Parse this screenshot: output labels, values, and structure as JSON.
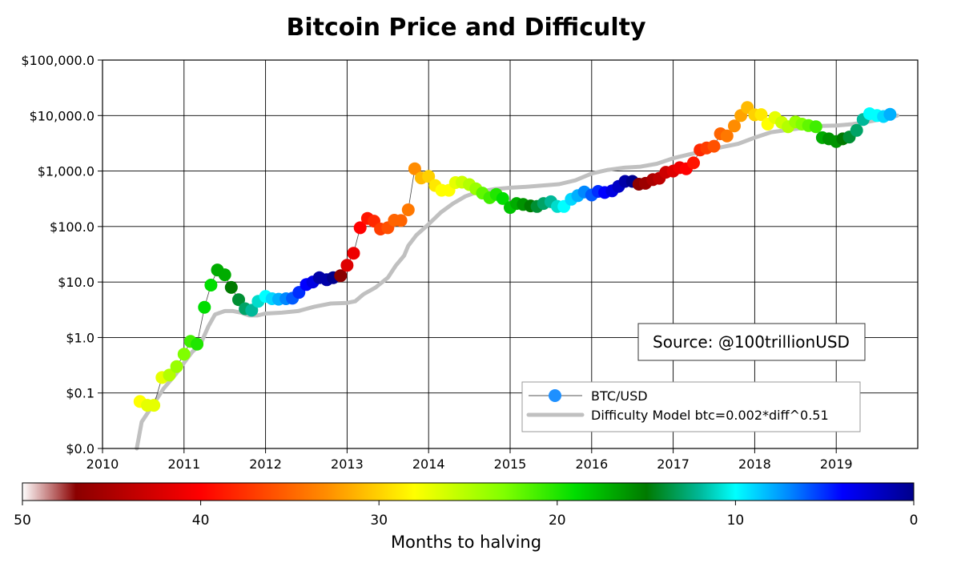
{
  "chart_data": {
    "type": "scatter",
    "title": "Bitcoin Price and Difficulty",
    "yscale": "log",
    "ylim": [
      0.01,
      100000
    ],
    "xlim": [
      2010.0,
      2020.0
    ],
    "y_ticks": [
      {
        "v": 100000,
        "label": "$100,000.0"
      },
      {
        "v": 10000,
        "label": "$10,000.0"
      },
      {
        "v": 1000,
        "label": "$1,000.0"
      },
      {
        "v": 100,
        "label": "$100.0"
      },
      {
        "v": 10,
        "label": "$10.0"
      },
      {
        "v": 1,
        "label": "$1.0"
      },
      {
        "v": 0.1,
        "label": "$0.1"
      },
      {
        "v": 0.01,
        "label": "$0.0"
      }
    ],
    "x_ticks": [
      {
        "v": 2010,
        "label": "2010"
      },
      {
        "v": 2011,
        "label": "2011"
      },
      {
        "v": 2012,
        "label": "2012"
      },
      {
        "v": 2013,
        "label": "2013"
      },
      {
        "v": 2014,
        "label": "2014"
      },
      {
        "v": 2015,
        "label": "2015"
      },
      {
        "v": 2016,
        "label": "2016"
      },
      {
        "v": 2017,
        "label": "2017"
      },
      {
        "v": 2018,
        "label": "2018"
      },
      {
        "v": 2019,
        "label": "2019"
      }
    ],
    "grid": true,
    "legend": {
      "placement": "lower-right",
      "entries": [
        {
          "label": "BTC/USD",
          "color": "#1e90ff"
        },
        {
          "label": "Difficulty Model btc=0.002*diff^0.51",
          "color": "#c0c0c0"
        }
      ]
    },
    "annotation": "Source: @100trillionUSD",
    "colorbar": {
      "label": "Months to halving",
      "range": [
        50,
        0
      ],
      "ticks": [
        {
          "v": 50,
          "label": "50"
        },
        {
          "v": 40,
          "label": "40"
        },
        {
          "v": 30,
          "label": "30"
        },
        {
          "v": 20,
          "label": "20"
        },
        {
          "v": 10,
          "label": "10"
        },
        {
          "v": 0,
          "label": "0"
        }
      ],
      "colormap": [
        {
          "m": 50,
          "color": "#ffffff"
        },
        {
          "m": 47,
          "color": "#8b0000"
        },
        {
          "m": 40,
          "color": "#ff0000"
        },
        {
          "m": 33,
          "color": "#ff8c00"
        },
        {
          "m": 28,
          "color": "#ffff00"
        },
        {
          "m": 23,
          "color": "#80ff00"
        },
        {
          "m": 19,
          "color": "#00dd00"
        },
        {
          "m": 15,
          "color": "#007a00"
        },
        {
          "m": 12,
          "color": "#00b899"
        },
        {
          "m": 10,
          "color": "#00ffff"
        },
        {
          "m": 7,
          "color": "#0088ff"
        },
        {
          "m": 4,
          "color": "#0000ff"
        },
        {
          "m": 0,
          "color": "#00008b"
        }
      ]
    },
    "series": [
      {
        "name": "Difficulty Model btc=0.002*diff^0.51",
        "color": "#c0c0c0",
        "points": [
          [
            2010.42,
            0.01
          ],
          [
            2010.48,
            0.03
          ],
          [
            2010.58,
            0.05
          ],
          [
            2010.75,
            0.12
          ],
          [
            2010.9,
            0.22
          ],
          [
            2011.0,
            0.35
          ],
          [
            2011.1,
            0.55
          ],
          [
            2011.2,
            0.75
          ],
          [
            2011.3,
            1.6
          ],
          [
            2011.38,
            2.6
          ],
          [
            2011.5,
            3.0
          ],
          [
            2011.6,
            3.0
          ],
          [
            2011.7,
            2.8
          ],
          [
            2011.8,
            2.5
          ],
          [
            2011.9,
            2.5
          ],
          [
            2012.0,
            2.7
          ],
          [
            2012.2,
            2.8
          ],
          [
            2012.4,
            3.0
          ],
          [
            2012.6,
            3.6
          ],
          [
            2012.8,
            4.1
          ],
          [
            2013.0,
            4.2
          ],
          [
            2013.1,
            4.5
          ],
          [
            2013.2,
            6.0
          ],
          [
            2013.35,
            8.0
          ],
          [
            2013.5,
            12
          ],
          [
            2013.6,
            20
          ],
          [
            2013.7,
            30
          ],
          [
            2013.75,
            45
          ],
          [
            2013.85,
            70
          ],
          [
            2014.0,
            110
          ],
          [
            2014.15,
            180
          ],
          [
            2014.3,
            260
          ],
          [
            2014.45,
            350
          ],
          [
            2014.6,
            420
          ],
          [
            2014.8,
            470
          ],
          [
            2015.0,
            500
          ],
          [
            2015.2,
            520
          ],
          [
            2015.4,
            550
          ],
          [
            2015.6,
            580
          ],
          [
            2015.8,
            680
          ],
          [
            2016.0,
            900
          ],
          [
            2016.2,
            1050
          ],
          [
            2016.4,
            1150
          ],
          [
            2016.6,
            1200
          ],
          [
            2016.8,
            1350
          ],
          [
            2017.0,
            1700
          ],
          [
            2017.2,
            2000
          ],
          [
            2017.4,
            2300
          ],
          [
            2017.6,
            2700
          ],
          [
            2017.8,
            3100
          ],
          [
            2018.0,
            4000
          ],
          [
            2018.2,
            5000
          ],
          [
            2018.4,
            5500
          ],
          [
            2018.6,
            6000
          ],
          [
            2018.8,
            6500
          ],
          [
            2019.0,
            6600
          ],
          [
            2019.2,
            7000
          ],
          [
            2019.4,
            7800
          ],
          [
            2019.6,
            8800
          ],
          [
            2019.75,
            10000
          ]
        ]
      },
      {
        "name": "BTC/USD",
        "points": [
          {
            "x": 2010.46,
            "y": 0.07,
            "m": 28
          },
          {
            "x": 2010.55,
            "y": 0.06,
            "m": 27
          },
          {
            "x": 2010.63,
            "y": 0.06,
            "m": 27
          },
          {
            "x": 2010.73,
            "y": 0.19,
            "m": 27
          },
          {
            "x": 2010.82,
            "y": 0.21,
            "m": 25
          },
          {
            "x": 2010.91,
            "y": 0.3,
            "m": 24
          },
          {
            "x": 2011.0,
            "y": 0.5,
            "m": 23
          },
          {
            "x": 2011.08,
            "y": 0.85,
            "m": 21
          },
          {
            "x": 2011.16,
            "y": 0.76,
            "m": 20
          },
          {
            "x": 2011.25,
            "y": 3.5,
            "m": 19
          },
          {
            "x": 2011.33,
            "y": 8.8,
            "m": 19
          },
          {
            "x": 2011.41,
            "y": 16.5,
            "m": 17
          },
          {
            "x": 2011.5,
            "y": 13.5,
            "m": 17
          },
          {
            "x": 2011.58,
            "y": 8.0,
            "m": 15
          },
          {
            "x": 2011.67,
            "y": 4.8,
            "m": 14
          },
          {
            "x": 2011.75,
            "y": 3.3,
            "m": 13
          },
          {
            "x": 2011.83,
            "y": 3.1,
            "m": 12
          },
          {
            "x": 2011.91,
            "y": 4.5,
            "m": 11
          },
          {
            "x": 2012.0,
            "y": 5.5,
            "m": 10
          },
          {
            "x": 2012.08,
            "y": 5.0,
            "m": 9
          },
          {
            "x": 2012.16,
            "y": 4.9,
            "m": 8
          },
          {
            "x": 2012.25,
            "y": 5.0,
            "m": 7
          },
          {
            "x": 2012.33,
            "y": 5.1,
            "m": 6
          },
          {
            "x": 2012.41,
            "y": 6.5,
            "m": 5
          },
          {
            "x": 2012.5,
            "y": 9.0,
            "m": 4
          },
          {
            "x": 2012.58,
            "y": 10.0,
            "m": 3
          },
          {
            "x": 2012.66,
            "y": 12.0,
            "m": 1
          },
          {
            "x": 2012.75,
            "y": 11.0,
            "m": 1
          },
          {
            "x": 2012.83,
            "y": 12.0,
            "m": 0
          },
          {
            "x": 2012.92,
            "y": 13.0,
            "m": 47
          },
          {
            "x": 2013.0,
            "y": 20.0,
            "m": 42
          },
          {
            "x": 2013.08,
            "y": 33.0,
            "m": 41
          },
          {
            "x": 2013.16,
            "y": 95.0,
            "m": 40
          },
          {
            "x": 2013.25,
            "y": 140.0,
            "m": 39
          },
          {
            "x": 2013.33,
            "y": 125.0,
            "m": 38
          },
          {
            "x": 2013.41,
            "y": 90.0,
            "m": 37
          },
          {
            "x": 2013.5,
            "y": 95.0,
            "m": 36
          },
          {
            "x": 2013.58,
            "y": 130.0,
            "m": 35
          },
          {
            "x": 2013.66,
            "y": 128.0,
            "m": 35
          },
          {
            "x": 2013.75,
            "y": 200.0,
            "m": 34
          },
          {
            "x": 2013.83,
            "y": 1100.0,
            "m": 33
          },
          {
            "x": 2013.91,
            "y": 750.0,
            "m": 31
          },
          {
            "x": 2014.0,
            "y": 800.0,
            "m": 30
          },
          {
            "x": 2014.08,
            "y": 550.0,
            "m": 29
          },
          {
            "x": 2014.16,
            "y": 450.0,
            "m": 28
          },
          {
            "x": 2014.25,
            "y": 450.0,
            "m": 28
          },
          {
            "x": 2014.33,
            "y": 620.0,
            "m": 27
          },
          {
            "x": 2014.41,
            "y": 630.0,
            "m": 26
          },
          {
            "x": 2014.5,
            "y": 570.0,
            "m": 25
          },
          {
            "x": 2014.58,
            "y": 480.0,
            "m": 24
          },
          {
            "x": 2014.66,
            "y": 400.0,
            "m": 22
          },
          {
            "x": 2014.75,
            "y": 330.0,
            "m": 21
          },
          {
            "x": 2014.83,
            "y": 380.0,
            "m": 20
          },
          {
            "x": 2014.91,
            "y": 320.0,
            "m": 19
          },
          {
            "x": 2015.0,
            "y": 220.0,
            "m": 18
          },
          {
            "x": 2015.08,
            "y": 260.0,
            "m": 17
          },
          {
            "x": 2015.16,
            "y": 250.0,
            "m": 16
          },
          {
            "x": 2015.25,
            "y": 235.0,
            "m": 15
          },
          {
            "x": 2015.33,
            "y": 230.0,
            "m": 14
          },
          {
            "x": 2015.41,
            "y": 260.0,
            "m": 13
          },
          {
            "x": 2015.5,
            "y": 280.0,
            "m": 12
          },
          {
            "x": 2015.58,
            "y": 230.0,
            "m": 11
          },
          {
            "x": 2015.66,
            "y": 230.0,
            "m": 10
          },
          {
            "x": 2015.75,
            "y": 310.0,
            "m": 9
          },
          {
            "x": 2015.83,
            "y": 360.0,
            "m": 8
          },
          {
            "x": 2015.91,
            "y": 420.0,
            "m": 7
          },
          {
            "x": 2016.0,
            "y": 370.0,
            "m": 6
          },
          {
            "x": 2016.08,
            "y": 430.0,
            "m": 5
          },
          {
            "x": 2016.16,
            "y": 410.0,
            "m": 4
          },
          {
            "x": 2016.25,
            "y": 440.0,
            "m": 3
          },
          {
            "x": 2016.33,
            "y": 530.0,
            "m": 2
          },
          {
            "x": 2016.41,
            "y": 650.0,
            "m": 1
          },
          {
            "x": 2016.5,
            "y": 650.0,
            "m": 0
          },
          {
            "x": 2016.58,
            "y": 580.0,
            "m": 47
          },
          {
            "x": 2016.66,
            "y": 600.0,
            "m": 46
          },
          {
            "x": 2016.75,
            "y": 700.0,
            "m": 45
          },
          {
            "x": 2016.83,
            "y": 740.0,
            "m": 44
          },
          {
            "x": 2016.91,
            "y": 950.0,
            "m": 43
          },
          {
            "x": 2017.0,
            "y": 1000.0,
            "m": 42
          },
          {
            "x": 2017.08,
            "y": 1150.0,
            "m": 41
          },
          {
            "x": 2017.16,
            "y": 1100.0,
            "m": 40
          },
          {
            "x": 2017.25,
            "y": 1400.0,
            "m": 39
          },
          {
            "x": 2017.33,
            "y": 2400.0,
            "m": 38
          },
          {
            "x": 2017.41,
            "y": 2600.0,
            "m": 37
          },
          {
            "x": 2017.5,
            "y": 2800.0,
            "m": 36
          },
          {
            "x": 2017.58,
            "y": 4700.0,
            "m": 35
          },
          {
            "x": 2017.66,
            "y": 4300.0,
            "m": 34
          },
          {
            "x": 2017.75,
            "y": 6500.0,
            "m": 33
          },
          {
            "x": 2017.83,
            "y": 10000.0,
            "m": 32
          },
          {
            "x": 2017.91,
            "y": 14000.0,
            "m": 31
          },
          {
            "x": 2018.0,
            "y": 10300.0,
            "m": 30
          },
          {
            "x": 2018.08,
            "y": 10400.0,
            "m": 29
          },
          {
            "x": 2018.16,
            "y": 7000.0,
            "m": 28
          },
          {
            "x": 2018.25,
            "y": 9200.0,
            "m": 27
          },
          {
            "x": 2018.33,
            "y": 7500.0,
            "m": 26
          },
          {
            "x": 2018.41,
            "y": 6300.0,
            "m": 25
          },
          {
            "x": 2018.5,
            "y": 7700.0,
            "m": 24
          },
          {
            "x": 2018.58,
            "y": 7000.0,
            "m": 23
          },
          {
            "x": 2018.66,
            "y": 6600.0,
            "m": 22
          },
          {
            "x": 2018.75,
            "y": 6300.0,
            "m": 21
          },
          {
            "x": 2018.83,
            "y": 4000.0,
            "m": 17
          },
          {
            "x": 2018.91,
            "y": 3800.0,
            "m": 16
          },
          {
            "x": 2019.0,
            "y": 3400.0,
            "m": 16
          },
          {
            "x": 2019.08,
            "y": 3800.0,
            "m": 15
          },
          {
            "x": 2019.16,
            "y": 4100.0,
            "m": 14
          },
          {
            "x": 2019.25,
            "y": 5400.0,
            "m": 13
          },
          {
            "x": 2019.33,
            "y": 8500.0,
            "m": 12
          },
          {
            "x": 2019.41,
            "y": 10800.0,
            "m": 10
          },
          {
            "x": 2019.5,
            "y": 10000.0,
            "m": 10
          },
          {
            "x": 2019.58,
            "y": 9600.0,
            "m": 9
          },
          {
            "x": 2019.66,
            "y": 10500.0,
            "m": 8
          }
        ]
      }
    ]
  }
}
